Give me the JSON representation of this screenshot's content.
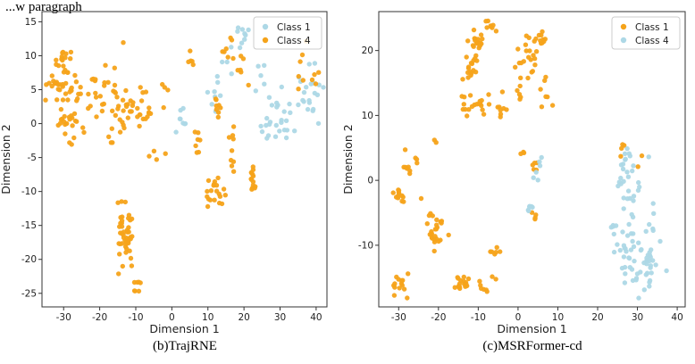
{
  "top_text": "...w paragraph",
  "colors": {
    "orange": "#F5A31A",
    "lightblue": "#ADD8E6"
  },
  "chart_data": [
    {
      "type": "scatter",
      "caption": "(b)TrajRNE",
      "xlabel": "Dimension 1",
      "ylabel": "Dimension 2",
      "xlim": [
        -36,
        43
      ],
      "ylim": [
        -27,
        16.5
      ],
      "xticks": [
        -30,
        -20,
        -10,
        0,
        10,
        20,
        30,
        40
      ],
      "yticks": [
        15,
        10,
        5,
        0,
        -5,
        -10,
        -15,
        -20,
        -25
      ],
      "legend": {
        "position": "top-right",
        "entries": [
          {
            "label": "Class 1",
            "color": "#ADD8E6"
          },
          {
            "label": "Class 4",
            "color": "#F5A31A"
          }
        ]
      },
      "series": [
        {
          "name": "Class 1",
          "color": "#ADD8E6",
          "clusters": [
            {
              "cx": 19,
              "cy": 13,
              "sx": 1.2,
              "sy": 1.3,
              "n": 9
            },
            {
              "cx": 25,
              "cy": 7.5,
              "sx": 1.5,
              "sy": 1.5,
              "n": 5
            },
            {
              "cx": 29,
              "cy": 0,
              "sx": 3.0,
              "sy": 2.2,
              "n": 26
            },
            {
              "cx": 38,
              "cy": 5,
              "sx": 2.0,
              "sy": 2.2,
              "n": 22
            },
            {
              "cx": 12,
              "cy": 4.5,
              "sx": 1.5,
              "sy": 1.8,
              "n": 8
            },
            {
              "cx": 3,
              "cy": 1,
              "sx": 2.0,
              "sy": 1.2,
              "n": 8
            },
            {
              "cx": 16,
              "cy": 10,
              "sx": 1.0,
              "sy": 1.0,
              "n": 4
            }
          ]
        },
        {
          "name": "Class 4",
          "color": "#F5A31A",
          "clusters": [
            {
              "cx": -30,
              "cy": 9.5,
              "sx": 1.5,
              "sy": 0.8,
              "n": 16
            },
            {
              "cx": -30,
              "cy": 5.5,
              "sx": 2.0,
              "sy": 1.0,
              "n": 26
            },
            {
              "cx": -29,
              "cy": 0.2,
              "sx": 2.2,
              "sy": 1.2,
              "n": 22
            },
            {
              "cx": -20,
              "cy": 3.5,
              "sx": 4.0,
              "sy": 2.0,
              "n": 44
            },
            {
              "cx": -10,
              "cy": 1.5,
              "sx": 3.5,
              "sy": 1.5,
              "n": 30
            },
            {
              "cx": -13,
              "cy": -17,
              "sx": 1.4,
              "sy": 2.5,
              "n": 45
            },
            {
              "cx": -9.5,
              "cy": -24,
              "sx": 0.5,
              "sy": 0.5,
              "n": 7
            },
            {
              "cx": 12,
              "cy": -10,
              "sx": 1.3,
              "sy": 1.2,
              "n": 20
            },
            {
              "cx": 22.5,
              "cy": -8.5,
              "sx": 0.6,
              "sy": 1.2,
              "n": 14
            },
            {
              "cx": 17,
              "cy": -3,
              "sx": 0.7,
              "sy": 2.0,
              "n": 9
            },
            {
              "cx": 13,
              "cy": 3,
              "sx": 1.2,
              "sy": 1.5,
              "n": 8
            },
            {
              "cx": 7,
              "cy": -2.5,
              "sx": 1.2,
              "sy": 1.2,
              "n": 7
            },
            {
              "cx": 5.5,
              "cy": 9.5,
              "sx": 0.6,
              "sy": 0.6,
              "n": 5
            },
            {
              "cx": 15.5,
              "cy": 11,
              "sx": 1.0,
              "sy": 1.0,
              "n": 7
            },
            {
              "cx": 19,
              "cy": 8,
              "sx": 1.2,
              "sy": 1.2,
              "n": 6
            },
            {
              "cx": 36,
              "cy": 9,
              "sx": 1.0,
              "sy": 1.5,
              "n": 6
            },
            {
              "cx": 40,
              "cy": 6.5,
              "sx": 0.6,
              "sy": 0.6,
              "n": 4
            },
            {
              "cx": -5,
              "cy": -4.5,
              "sx": 1.5,
              "sy": 0.6,
              "n": 4
            },
            {
              "cx": -1,
              "cy": 5.5,
              "sx": 1.0,
              "sy": 1.0,
              "n": 3
            },
            {
              "cx": -13,
              "cy": 11.5,
              "sx": 0.3,
              "sy": 0.3,
              "n": 1
            }
          ]
        }
      ]
    },
    {
      "type": "scatter",
      "caption": "(c)MSRFormer-cd",
      "xlabel": "Dimension 1",
      "ylabel": "Dimension 2",
      "xlim": [
        -35,
        42
      ],
      "ylim": [
        -19.5,
        26
      ],
      "xticks": [
        -30,
        -20,
        -10,
        0,
        10,
        20,
        30,
        40
      ],
      "yticks": [
        20,
        10,
        0,
        -10
      ],
      "legend": {
        "position": "top-right",
        "entries": [
          {
            "label": "Class 1",
            "color": "#F5A31A"
          },
          {
            "label": "Class 4",
            "color": "#ADD8E6"
          }
        ]
      },
      "series": [
        {
          "name": "Class 1",
          "color": "#F5A31A",
          "clusters": [
            {
              "cx": -10,
              "cy": 21,
              "sx": 1.2,
              "sy": 1.0,
              "n": 20
            },
            {
              "cx": -12,
              "cy": 17.5,
              "sx": 1.2,
              "sy": 1.5,
              "n": 15
            },
            {
              "cx": 2,
              "cy": 19,
              "sx": 1.5,
              "sy": 2.0,
              "n": 22
            },
            {
              "cx": -7,
              "cy": 24,
              "sx": 1.0,
              "sy": 0.5,
              "n": 8
            },
            {
              "cx": 6,
              "cy": 21.5,
              "sx": 1.0,
              "sy": 1.0,
              "n": 10
            },
            {
              "cx": 7,
              "cy": 13,
              "sx": 0.8,
              "sy": 1.0,
              "n": 6
            },
            {
              "cx": 0,
              "cy": 13,
              "sx": 0.6,
              "sy": 0.6,
              "n": 5
            },
            {
              "cx": -10,
              "cy": 12,
              "sx": 1.5,
              "sy": 1.0,
              "n": 14
            },
            {
              "cx": -4,
              "cy": 11,
              "sx": 1.0,
              "sy": 1.0,
              "n": 8
            },
            {
              "cx": -13.5,
              "cy": 11.5,
              "sx": 0.8,
              "sy": 1.0,
              "n": 6
            },
            {
              "cx": -27,
              "cy": 3,
              "sx": 1.0,
              "sy": 1.5,
              "n": 10
            },
            {
              "cx": -30,
              "cy": -2.5,
              "sx": 0.6,
              "sy": 0.6,
              "n": 12
            },
            {
              "cx": -21,
              "cy": -7.5,
              "sx": 1.5,
              "sy": 1.5,
              "n": 28
            },
            {
              "cx": -30,
              "cy": -16,
              "sx": 0.8,
              "sy": 0.8,
              "n": 14
            },
            {
              "cx": -14,
              "cy": -16,
              "sx": 1.2,
              "sy": 0.8,
              "n": 18
            },
            {
              "cx": -9,
              "cy": -16.5,
              "sx": 0.6,
              "sy": 0.6,
              "n": 6
            },
            {
              "cx": -6,
              "cy": -11,
              "sx": 0.6,
              "sy": 0.3,
              "n": 6
            },
            {
              "cx": 1.5,
              "cy": 4,
              "sx": 0.4,
              "sy": 0.4,
              "n": 3
            },
            {
              "cx": 4,
              "cy": 2,
              "sx": 0.5,
              "sy": 0.6,
              "n": 5
            },
            {
              "cx": 4,
              "cy": -5,
              "sx": 0.5,
              "sy": 0.5,
              "n": 4
            },
            {
              "cx": 26,
              "cy": 5,
              "sx": 0.5,
              "sy": 0.6,
              "n": 4
            },
            {
              "cx": 30.5,
              "cy": 3,
              "sx": 0.5,
              "sy": 0.5,
              "n": 2
            },
            {
              "cx": -21,
              "cy": 6,
              "sx": 0.5,
              "sy": 0.5,
              "n": 2
            },
            {
              "cx": -6,
              "cy": -15,
              "sx": 0.5,
              "sy": 0.5,
              "n": 2
            }
          ]
        },
        {
          "name": "Class 4",
          "color": "#ADD8E6",
          "clusters": [
            {
              "cx": 27,
              "cy": 1.5,
              "sx": 1.5,
              "sy": 2.5,
              "n": 20
            },
            {
              "cx": 30,
              "cy": -1,
              "sx": 1.5,
              "sy": 2.0,
              "n": 8
            },
            {
              "cx": 31,
              "cy": -11,
              "sx": 3.0,
              "sy": 3.0,
              "n": 60
            },
            {
              "cx": 26,
              "cy": -8,
              "sx": 1.5,
              "sy": 1.5,
              "n": 12
            },
            {
              "cx": 5.5,
              "cy": 2,
              "sx": 0.6,
              "sy": 2.0,
              "n": 6
            },
            {
              "cx": 3.5,
              "cy": -4.5,
              "sx": 0.6,
              "sy": 0.5,
              "n": 6
            }
          ]
        }
      ]
    }
  ]
}
